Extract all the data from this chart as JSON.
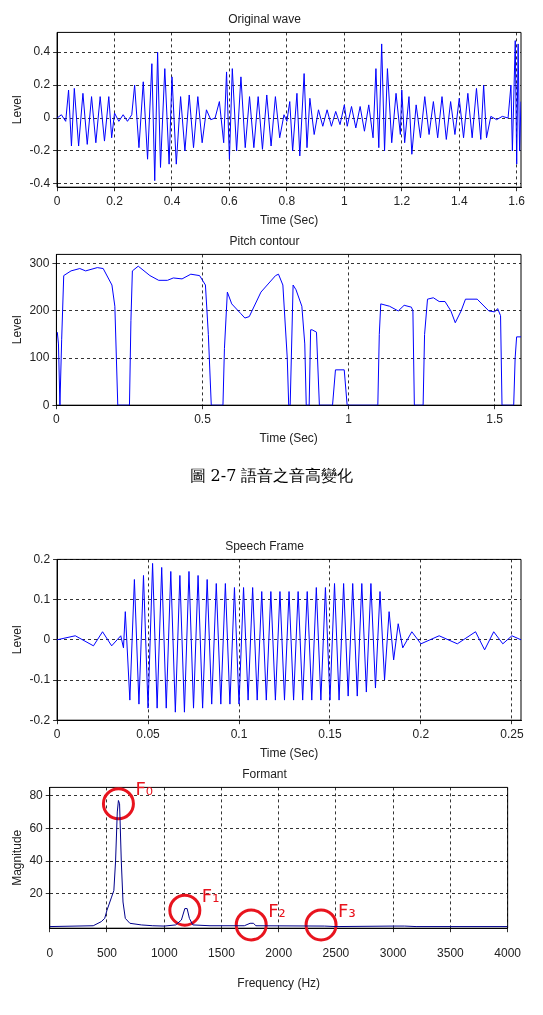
{
  "chart_data": [
    {
      "type": "line",
      "title": "Original wave",
      "xlabel": "Time (Sec)",
      "ylabel": "Level",
      "xlim": [
        0,
        1.615
      ],
      "ylim": [
        -0.42,
        0.52
      ],
      "xticks": [
        0,
        0.2,
        0.4,
        0.6,
        0.8,
        1,
        1.2,
        1.4,
        1.6
      ],
      "yticks": [
        -0.4,
        -0.2,
        0,
        0.2,
        0.4
      ],
      "grid": true,
      "series": [
        {
          "color": "#0000ff",
          "x": [
            0,
            0.015,
            0.03,
            0.04,
            0.05,
            0.06,
            0.075,
            0.09,
            0.105,
            0.12,
            0.135,
            0.15,
            0.165,
            0.18,
            0.19,
            0.2,
            0.215,
            0.23,
            0.245,
            0.26,
            0.27,
            0.285,
            0.3,
            0.315,
            0.33,
            0.34,
            0.35,
            0.36,
            0.375,
            0.39,
            0.4,
            0.415,
            0.43,
            0.445,
            0.46,
            0.475,
            0.49,
            0.505,
            0.52,
            0.535,
            0.55,
            0.565,
            0.58,
            0.59,
            0.6,
            0.61,
            0.625,
            0.64,
            0.655,
            0.67,
            0.685,
            0.7,
            0.715,
            0.73,
            0.745,
            0.76,
            0.775,
            0.79,
            0.8,
            0.81,
            0.82,
            0.835,
            0.845,
            0.86,
            0.87,
            0.88,
            0.895,
            0.91,
            0.925,
            0.94,
            0.955,
            0.97,
            0.985,
            1.0,
            1.01,
            1.025,
            1.04,
            1.055,
            1.07,
            1.085,
            1.1,
            1.11,
            1.12,
            1.13,
            1.14,
            1.15,
            1.165,
            1.18,
            1.195,
            1.2,
            1.21,
            1.225,
            1.235,
            1.25,
            1.265,
            1.28,
            1.295,
            1.31,
            1.325,
            1.34,
            1.355,
            1.37,
            1.385,
            1.4,
            1.415,
            1.43,
            1.445,
            1.46,
            1.475,
            1.485,
            1.495,
            1.51,
            1.53,
            1.55,
            1.57,
            1.58,
            1.585,
            1.595,
            1.6,
            1.605,
            1.61,
            1.615
          ],
          "values": [
            0,
            0.02,
            -0.02,
            0.17,
            -0.17,
            0.18,
            -0.17,
            0.15,
            -0.16,
            0.13,
            -0.15,
            0.13,
            -0.14,
            0.13,
            -0.12,
            0.03,
            -0.02,
            0.02,
            -0.02,
            0.02,
            0.2,
            -0.18,
            0.22,
            -0.25,
            0.33,
            -0.38,
            0.4,
            -0.3,
            0.3,
            -0.28,
            0.25,
            -0.28,
            0.13,
            -0.2,
            0.14,
            -0.18,
            0.13,
            -0.15,
            0.05,
            -0.01,
            0,
            0.1,
            -0.15,
            0.28,
            -0.25,
            0.3,
            -0.2,
            0.25,
            -0.18,
            0.13,
            -0.18,
            0.13,
            -0.19,
            0.14,
            -0.17,
            0.13,
            -0.12,
            0.02,
            -0.02,
            0.1,
            -0.2,
            0.15,
            -0.23,
            0.27,
            -0.18,
            0.12,
            -0.1,
            0.05,
            -0.05,
            0.05,
            -0.05,
            0.04,
            -0.04,
            0.08,
            -0.05,
            0.07,
            -0.06,
            0.07,
            -0.08,
            0.08,
            -0.12,
            0.3,
            -0.18,
            0.45,
            -0.2,
            0.3,
            -0.15,
            0.15,
            -0.1,
            0.17,
            -0.15,
            0.13,
            -0.22,
            0.08,
            -0.12,
            0.13,
            -0.1,
            0.1,
            -0.12,
            0.13,
            -0.13,
            0.1,
            -0.1,
            0.12,
            -0.12,
            0.15,
            -0.12,
            0.18,
            -0.13,
            0.2,
            -0.12,
            0.01,
            -0.01,
            0.01,
            0,
            0.2,
            -0.2,
            0.47,
            -0.28,
            0.45,
            -0.2,
            0.1
          ]
        }
      ]
    },
    {
      "type": "line",
      "title": "Pitch contour",
      "xlabel": "Time (Sec)",
      "ylabel": "Level",
      "xlim": [
        0,
        1.59
      ],
      "ylim": [
        0,
        320
      ],
      "xticks": [
        0,
        0.5,
        1,
        1.5
      ],
      "yticks": [
        0,
        100,
        200,
        300
      ],
      "grid": true,
      "annotations": [
        "圖 2-7 語音之音高變化"
      ],
      "series": [
        {
          "color": "#0000ff",
          "x": [
            0.003,
            0.007,
            0.012,
            0.018,
            0.025,
            0.05,
            0.08,
            0.1,
            0.14,
            0.16,
            0.19,
            0.2,
            0.21,
            0.25,
            0.255,
            0.26,
            0.28,
            0.32,
            0.35,
            0.38,
            0.4,
            0.43,
            0.46,
            0.49,
            0.51,
            0.52,
            0.53,
            0.57,
            0.575,
            0.585,
            0.6,
            0.63,
            0.645,
            0.66,
            0.7,
            0.75,
            0.76,
            0.775,
            0.79,
            0.795,
            0.8,
            0.81,
            0.82,
            0.84,
            0.85,
            0.855,
            0.865,
            0.87,
            0.875,
            0.89,
            0.9,
            0.945,
            0.955,
            0.985,
            0.995,
            1.1,
            1.105,
            1.11,
            1.14,
            1.17,
            1.19,
            1.215,
            1.22,
            1.225,
            1.255,
            1.26,
            1.27,
            1.29,
            1.31,
            1.33,
            1.35,
            1.365,
            1.385,
            1.4,
            1.44,
            1.48,
            1.5,
            1.51,
            1.52,
            1.525,
            1.565,
            1.57,
            1.575,
            1.59
          ],
          "values": [
            155,
            130,
            0,
            140,
            275,
            285,
            290,
            285,
            292,
            290,
            255,
            210,
            0,
            0,
            180,
            285,
            295,
            275,
            265,
            265,
            270,
            268,
            278,
            275,
            255,
            150,
            0,
            0,
            120,
            240,
            215,
            195,
            185,
            188,
            240,
            275,
            278,
            255,
            100,
            0,
            0,
            255,
            245,
            210,
            130,
            0,
            0,
            160,
            160,
            155,
            0,
            0,
            75,
            75,
            0,
            0,
            150,
            215,
            210,
            200,
            212,
            208,
            200,
            0,
            0,
            150,
            225,
            228,
            220,
            220,
            200,
            175,
            200,
            225,
            225,
            200,
            198,
            205,
            190,
            0,
            0,
            100,
            145,
            145
          ]
        }
      ]
    },
    {
      "type": "line",
      "title": "Speech Frame",
      "xlabel": "Time (Sec)",
      "ylabel": "Level",
      "xlim": [
        0,
        0.255
      ],
      "ylim": [
        -0.2,
        0.2
      ],
      "xticks": [
        0,
        0.05,
        0.1,
        0.15,
        0.2,
        0.25
      ],
      "yticks": [
        -0.2,
        -0.1,
        0,
        0.1,
        0.2
      ],
      "grid": true,
      "series": [
        {
          "color": "#0000ff",
          "x": [
            0,
            0.01,
            0.02,
            0.025,
            0.03,
            0.035,
            0.0365,
            0.0375,
            0.04,
            0.0425,
            0.045,
            0.0475,
            0.05,
            0.0525,
            0.055,
            0.0575,
            0.06,
            0.0625,
            0.065,
            0.0675,
            0.07,
            0.0725,
            0.075,
            0.0775,
            0.08,
            0.0825,
            0.085,
            0.0875,
            0.09,
            0.0925,
            0.095,
            0.0975,
            0.1,
            0.1025,
            0.105,
            0.1075,
            0.11,
            0.1125,
            0.115,
            0.1175,
            0.12,
            0.1225,
            0.125,
            0.1275,
            0.13,
            0.1325,
            0.135,
            0.1375,
            0.14,
            0.1425,
            0.145,
            0.1475,
            0.15,
            0.1525,
            0.155,
            0.1575,
            0.16,
            0.1625,
            0.165,
            0.1675,
            0.17,
            0.1725,
            0.175,
            0.1775,
            0.18,
            0.1825,
            0.185,
            0.1875,
            0.19,
            0.195,
            0.2,
            0.21,
            0.22,
            0.23,
            0.235,
            0.24,
            0.245,
            0.25,
            0.255
          ],
          "values": [
            0,
            0.01,
            -0.015,
            0.02,
            -0.015,
            0.01,
            -0.02,
            0.07,
            -0.15,
            0.15,
            -0.16,
            0.16,
            -0.17,
            0.19,
            -0.17,
            0.18,
            -0.17,
            0.17,
            -0.18,
            0.16,
            -0.18,
            0.17,
            -0.17,
            0.16,
            -0.17,
            0.15,
            -0.16,
            0.14,
            -0.16,
            0.14,
            -0.16,
            0.13,
            -0.16,
            0.13,
            -0.15,
            0.13,
            -0.15,
            0.12,
            -0.15,
            0.12,
            -0.15,
            0.12,
            -0.15,
            0.12,
            -0.15,
            0.12,
            -0.15,
            0.12,
            -0.15,
            0.13,
            -0.15,
            0.13,
            -0.15,
            0.14,
            -0.15,
            0.14,
            -0.14,
            0.14,
            -0.14,
            0.14,
            -0.13,
            0.14,
            -0.12,
            0.12,
            -0.1,
            0.07,
            -0.05,
            0.04,
            -0.02,
            0.02,
            -0.01,
            0.01,
            -0.01,
            0.02,
            -0.025,
            0.02,
            -0.01,
            0.01,
            0
          ]
        }
      ]
    },
    {
      "type": "line",
      "title": "Formant",
      "xlabel": "Frequency (Hz)",
      "ylabel": "Magnitude",
      "xlim": [
        0,
        4000
      ],
      "ylim": [
        -1,
        85
      ],
      "xticks": [
        0,
        500,
        1000,
        1500,
        2000,
        2500,
        3000,
        3500,
        4000
      ],
      "yticks": [
        20,
        40,
        60,
        80
      ],
      "grid": true,
      "annotations": [
        {
          "text": "F₀",
          "x": 600,
          "y": 75
        },
        {
          "text": "F₁",
          "x": 1180,
          "y": 10
        },
        {
          "text": "F₂",
          "x": 1760,
          "y": 1
        },
        {
          "text": "F₃",
          "x": 2370,
          "y": 1
        }
      ],
      "series": [
        {
          "color": "#00008b",
          "x": [
            0,
            380,
            450,
            480,
            500,
            540,
            560,
            575,
            590,
            600,
            610,
            625,
            640,
            660,
            700,
            800,
            900,
            1000,
            1100,
            1150,
            1180,
            1200,
            1220,
            1250,
            1400,
            1700,
            1750,
            1780,
            1800,
            2400,
            2500,
            3000,
            3100,
            3200,
            4000
          ],
          "values": [
            0,
            0.5,
            3,
            5,
            10,
            18,
            22,
            40,
            70,
            77,
            75,
            40,
            15,
            5,
            2,
            1,
            0.5,
            0.3,
            1,
            4,
            11,
            11,
            5,
            1,
            0.5,
            0.5,
            2,
            2,
            0.5,
            0.3,
            0,
            0.3,
            0.3,
            0,
            0
          ]
        }
      ]
    }
  ]
}
